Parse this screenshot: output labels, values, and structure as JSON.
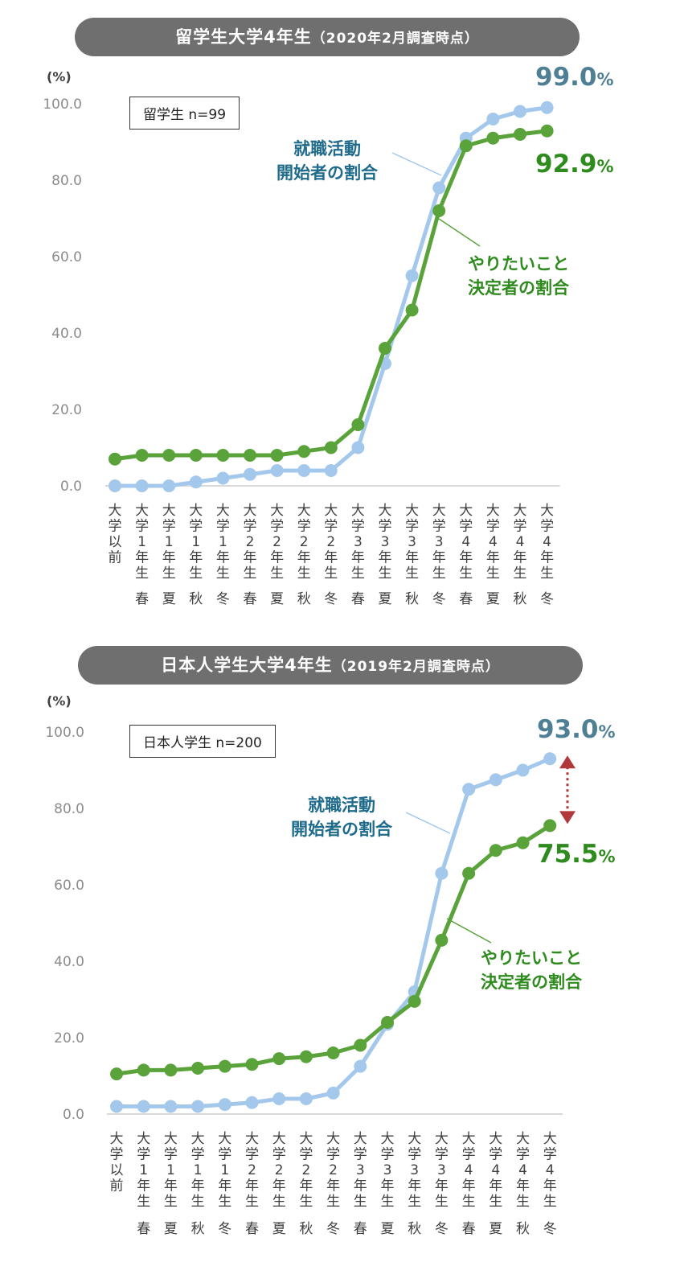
{
  "charts": [
    {
      "title": "留学生大学4年生",
      "title_paren": "（2020年2月調査時点）",
      "unit_label": "(%)",
      "sample_label": "留学生 n=99",
      "series_labels": [
        {
          "line1": "就職活動",
          "line2": "開始者の割合"
        },
        {
          "line1": "やりたいこと",
          "line2": "決定者の割合"
        }
      ],
      "end_labels": [
        {
          "value": "99.0",
          "suffix": "%"
        },
        {
          "value": "92.9",
          "suffix": "%"
        }
      ]
    },
    {
      "title": "日本人学生大学4年生",
      "title_paren": "（2019年2月調査時点）",
      "unit_label": "(%)",
      "sample_label": "日本人学生 n=200",
      "series_labels": [
        {
          "line1": "就職活動",
          "line2": "開始者の割合"
        },
        {
          "line1": "やりたいこと",
          "line2": "決定者の割合"
        }
      ],
      "end_labels": [
        {
          "value": "93.0",
          "suffix": "%"
        },
        {
          "value": "75.5",
          "suffix": "%"
        }
      ]
    }
  ],
  "chart_data": [
    {
      "type": "line",
      "title": "留学生大学4年生（2020年2月調査時点）",
      "ylabel": "(%)",
      "ylim": [
        0,
        100
      ],
      "yticks": [
        "0.0",
        "20.0",
        "40.0",
        "60.0",
        "80.0",
        "100.0"
      ],
      "categories": [
        "大学以前",
        "大学1年生 春",
        "大学1年生 夏",
        "大学1年生 秋",
        "大学1年生 冬",
        "大学2年生 春",
        "大学2年生 夏",
        "大学2年生 秋",
        "大学2年生 冬",
        "大学3年生 春",
        "大学3年生 夏",
        "大学3年生 秋",
        "大学3年生 冬",
        "大学4年生 春",
        "大学4年生 夏",
        "大学4年生 秋",
        "大学4年生 冬"
      ],
      "series": [
        {
          "name": "就職活動開始者の割合",
          "color": "#a4c8ec",
          "values": [
            0,
            0,
            0,
            1,
            2,
            3,
            4,
            4,
            4,
            10,
            32,
            55,
            78,
            91,
            96,
            98,
            99.0
          ]
        },
        {
          "name": "やりたいこと決定者の割合",
          "color": "#5aa33b",
          "values": [
            7,
            8,
            8,
            8,
            8,
            8,
            8,
            9,
            10,
            16,
            36,
            46,
            72,
            89,
            91,
            92,
            92.9
          ]
        }
      ],
      "legend": "inline labels",
      "grid": false
    },
    {
      "type": "line",
      "title": "日本人学生大学4年生（2019年2月調査時点）",
      "ylabel": "(%)",
      "ylim": [
        0,
        100
      ],
      "yticks": [
        "0.0",
        "20.0",
        "40.0",
        "60.0",
        "80.0",
        "100.0"
      ],
      "categories": [
        "大学以前",
        "大学1年生 春",
        "大学1年生 夏",
        "大学1年生 秋",
        "大学1年生 冬",
        "大学2年生 春",
        "大学2年生 夏",
        "大学2年生 秋",
        "大学2年生 冬",
        "大学3年生 春",
        "大学3年生 夏",
        "大学3年生 秋",
        "大学3年生 冬",
        "大学4年生 春",
        "大学4年生 夏",
        "大学4年生 秋",
        "大学4年生 冬"
      ],
      "series": [
        {
          "name": "就職活動開始者の割合",
          "color": "#a4c8ec",
          "values": [
            2,
            2,
            2,
            2,
            2.5,
            3,
            4,
            4,
            5.5,
            12.5,
            23.5,
            32,
            63,
            85,
            87.5,
            90,
            93.0
          ]
        },
        {
          "name": "やりたいこと決定者の割合",
          "color": "#5aa33b",
          "values": [
            10.5,
            11.5,
            11.5,
            12,
            12.5,
            13,
            14.5,
            15,
            16,
            18,
            24,
            29.5,
            45.5,
            63,
            69,
            71,
            75.5
          ]
        }
      ],
      "legend": "inline labels",
      "grid": false
    }
  ],
  "axis_labels": {
    "prefix": "大学",
    "pre": "以前",
    "year_suffix": "年生",
    "years": [
      "1",
      "1",
      "1",
      "1",
      "2",
      "2",
      "2",
      "2",
      "3",
      "3",
      "3",
      "3",
      "4",
      "4",
      "4",
      "4"
    ],
    "seasons": [
      "春",
      "夏",
      "秋",
      "冬",
      "春",
      "夏",
      "秋",
      "冬",
      "春",
      "夏",
      "秋",
      "冬",
      "春",
      "夏",
      "秋",
      "冬"
    ]
  },
  "colors": {
    "blue_line": "#a4c8ec",
    "green_line": "#5aa33b",
    "blue_text": "#1f6b8c",
    "green_text": "#2e8b1e",
    "banner": "#6f6f6f",
    "arrow": "#b0383a",
    "axis": "#d9d9d9",
    "tick_text": "#8c8c8c"
  }
}
